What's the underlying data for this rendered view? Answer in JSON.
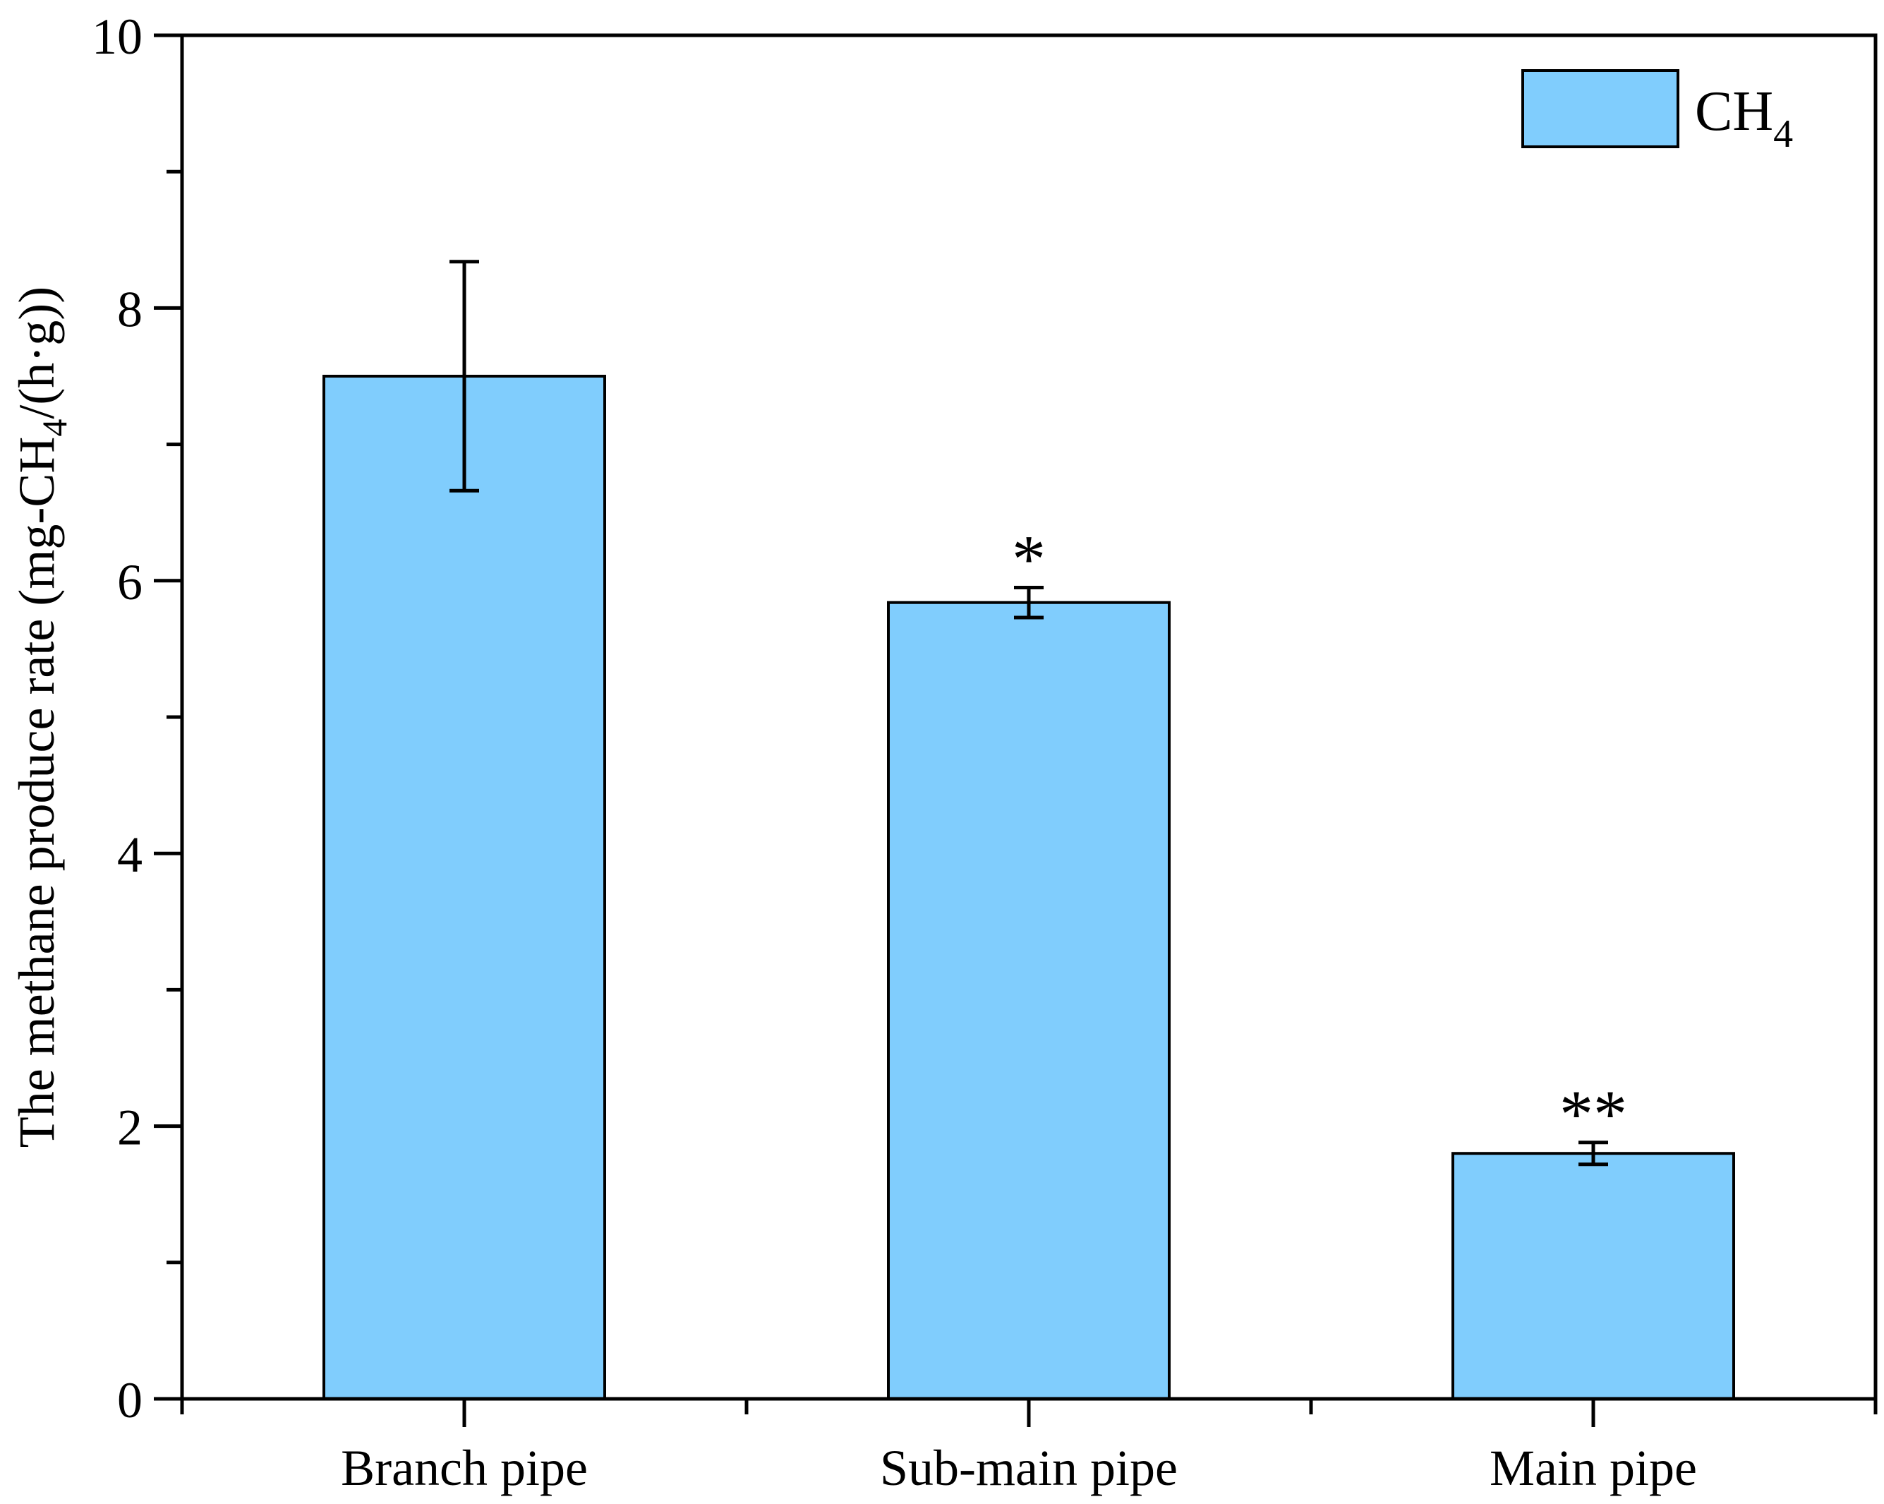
{
  "chart_data": {
    "type": "bar",
    "categories": [
      "Branch pipe",
      "Sub-main pipe",
      "Main pipe"
    ],
    "series": [
      {
        "name": "CH",
        "name_subscript": "4",
        "values": [
          7.5,
          5.84,
          1.8
        ],
        "error": [
          0.84,
          0.11,
          0.08
        ],
        "annotations": [
          "",
          "*",
          "**"
        ]
      }
    ],
    "ylabel": {
      "prefix": "The methane produce rate (mg-CH",
      "subscript": "4",
      "suffix": "/(h·g))"
    },
    "xlabel": "",
    "ylim": [
      0,
      10
    ],
    "yticks": [
      "0",
      "2",
      "4",
      "6",
      "8",
      "10"
    ],
    "ytick_values": [
      0,
      2,
      4,
      6,
      8,
      10
    ],
    "legend_position": "top-right",
    "grid": false,
    "bar_color": "#80cdfd",
    "edge_color": "#000000"
  }
}
